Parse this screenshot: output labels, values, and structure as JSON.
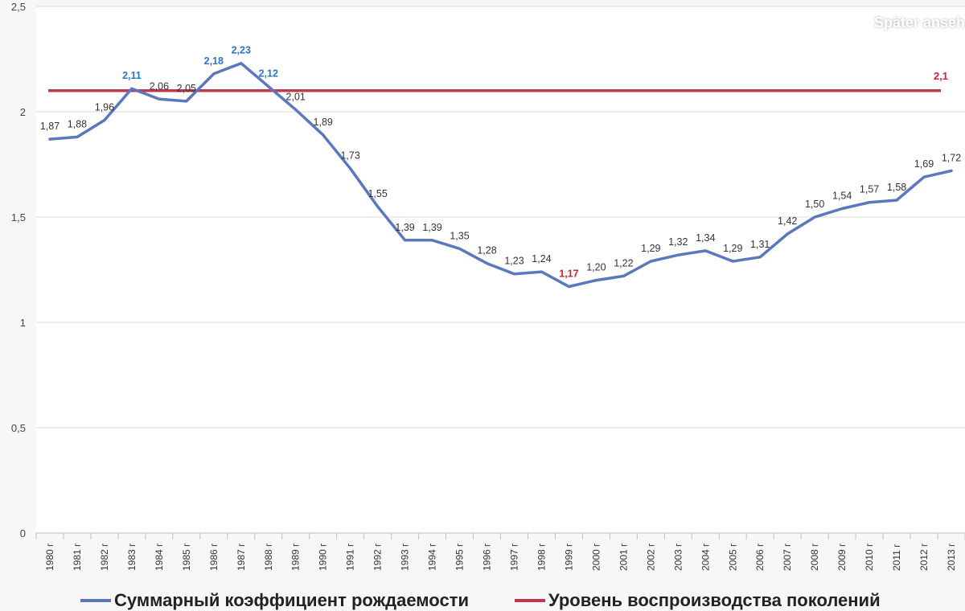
{
  "overlay": {
    "watch_later": "Später anseh"
  },
  "colors": {
    "background": "#ffffff",
    "grid": "#d9d9d9",
    "series_fertility": "#5b78bf",
    "series_replacement": "#c0394a",
    "label_default": "#333333",
    "label_high": "#2e74c2",
    "label_low": "#d0213a"
  },
  "chart_data": {
    "type": "line",
    "title": "",
    "xlabel": "",
    "ylabel": "",
    "ylim": [
      0,
      2.5
    ],
    "y_ticks": [
      "0",
      "0,5",
      "1",
      "1,5",
      "2",
      "2,5"
    ],
    "y_tick_values": [
      0,
      0.5,
      1,
      1.5,
      2,
      2.5
    ],
    "grid": true,
    "legend_position": "bottom",
    "categories": [
      "1980 г",
      "1981 г",
      "1982 г",
      "1983 г",
      "1984 г",
      "1985 г",
      "1986 г",
      "1987 г",
      "1988 г",
      "1989 г",
      "1990 г",
      "1991 г",
      "1992 г",
      "1993 г",
      "1994 г",
      "1995 г",
      "1996 г",
      "1997 г",
      "1998 г",
      "1999 г",
      "2000 г",
      "2001 г",
      "2002 г",
      "2003 г",
      "2004 г",
      "2005 г",
      "2006 г",
      "2007 г",
      "2008 г",
      "2009 г",
      "2010 г",
      "2011 г",
      "2012 г",
      "2013 г"
    ],
    "series": [
      {
        "name": "Суммарный коэффициент рождаемости",
        "values": [
          1.87,
          1.88,
          1.96,
          2.11,
          2.06,
          2.05,
          2.18,
          2.23,
          2.12,
          2.01,
          1.89,
          1.73,
          1.55,
          1.39,
          1.39,
          1.35,
          1.28,
          1.23,
          1.24,
          1.17,
          1.2,
          1.22,
          1.29,
          1.32,
          1.34,
          1.29,
          1.31,
          1.42,
          1.5,
          1.54,
          1.57,
          1.58,
          1.69,
          1.72
        ],
        "labels": [
          "1,87",
          "1,88",
          "1,96",
          "2,11",
          "2,06",
          "2,05",
          "2,18",
          "2,23",
          "2,12",
          "2,01",
          "1,89",
          "1,73",
          "1,55",
          "1,39",
          "1,39",
          "1,35",
          "1,28",
          "1,23",
          "1,24",
          "1,17",
          "1,20",
          "1,22",
          "1,29",
          "1,32",
          "1,34",
          "1,29",
          "1,31",
          "1,42",
          "1,50",
          "1,54",
          "1,57",
          "1,58",
          "1,69",
          "1,72"
        ],
        "highlight_high": [
          3,
          6,
          7,
          8
        ],
        "highlight_low": [
          19
        ]
      },
      {
        "name": "Уровень воспроизводства поколений",
        "value": 2.1,
        "label": "2,1"
      }
    ]
  }
}
